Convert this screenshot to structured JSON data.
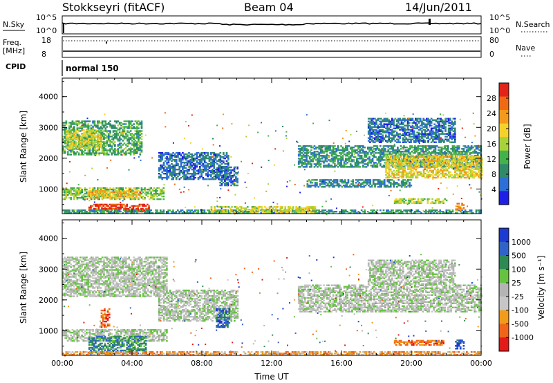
{
  "header": {
    "station": "Stokkseyri (fitACF)",
    "beam": "Beam 04",
    "date": "14/Jun/2011"
  },
  "summary_panels": {
    "nsky_label": "N.Sky",
    "nsky_ticks": [
      "10^5",
      "10^0"
    ],
    "nsearch_label": "N.Search",
    "nsearch_ticks": [
      "10^5",
      "10^0"
    ],
    "freq_label": "Freq.",
    "freq_unit": "[MHz]",
    "freq_ticks": [
      "18",
      "8"
    ],
    "nave_label": "Nave",
    "nave_ticks": [
      "80",
      "0"
    ],
    "cpid_label": "CPID",
    "cpid_value": "normal 150"
  },
  "colors": {
    "power_scale": [
      "#1f1fe6",
      "#2d6fd6",
      "#2f8a6a",
      "#44b24a",
      "#a8d23a",
      "#f4d22a",
      "#f39a1c",
      "#ef6a12",
      "#e2231a"
    ],
    "velocity_scale": [
      "#1d3bd0",
      "#2f63c8",
      "#2e8a55",
      "#66c340",
      "#b4b4b4",
      "#c6c6c6",
      "#f19b1b",
      "#f0651a",
      "#e21a1a"
    ]
  },
  "chart_data": [
    {
      "type": "heatmap",
      "name": "power",
      "ylabel": "Slant Range [km]",
      "yticks": [
        "4000",
        "3000",
        "2000",
        "1000"
      ],
      "ylim": [
        200,
        4600
      ],
      "xlim": [
        0,
        24
      ],
      "xticks": [
        "00:00",
        "04:00",
        "08:00",
        "12:00",
        "16:00",
        "20:00",
        "00:00"
      ],
      "colorbar_label": "Power [dB]",
      "colorbar_ticks": [
        "28",
        "24",
        "20",
        "16",
        "12",
        "8",
        "4"
      ],
      "colorbar_range": [
        0,
        32
      ],
      "regions": [
        {
          "t0": 0.0,
          "t1": 4.5,
          "r0": 2100,
          "r1": 3200,
          "level": 0.35
        },
        {
          "t0": 0.2,
          "t1": 2.2,
          "r0": 2300,
          "r1": 2900,
          "level": 0.55
        },
        {
          "t0": 0.0,
          "t1": 5.8,
          "r0": 650,
          "r1": 1050,
          "level": 0.45
        },
        {
          "t0": 1.5,
          "t1": 4.2,
          "r0": 700,
          "r1": 950,
          "level": 0.65
        },
        {
          "t0": 1.5,
          "t1": 5.0,
          "r0": 250,
          "r1": 500,
          "level": 0.92
        },
        {
          "t0": 0.0,
          "t1": 24.0,
          "r0": 200,
          "r1": 300,
          "level": 0.3
        },
        {
          "t0": 8.5,
          "t1": 14.5,
          "r0": 220,
          "r1": 420,
          "level": 0.55
        },
        {
          "t0": 5.5,
          "t1": 9.5,
          "r0": 1300,
          "r1": 2200,
          "level": 0.2
        },
        {
          "t0": 9.0,
          "t1": 10.0,
          "r0": 1100,
          "r1": 1700,
          "level": 0.2
        },
        {
          "t0": 13.5,
          "t1": 24.0,
          "r0": 1700,
          "r1": 2400,
          "level": 0.3
        },
        {
          "t0": 18.5,
          "t1": 24.0,
          "r0": 1350,
          "r1": 2100,
          "level": 0.6
        },
        {
          "t0": 14.0,
          "t1": 20.0,
          "r0": 1050,
          "r1": 1300,
          "level": 0.25
        },
        {
          "t0": 19.0,
          "t1": 22.0,
          "r0": 520,
          "r1": 680,
          "level": 0.5
        },
        {
          "t0": 17.5,
          "t1": 22.5,
          "r0": 2500,
          "r1": 3300,
          "level": 0.2
        },
        {
          "t0": 22.5,
          "t1": 23.0,
          "r0": 280,
          "r1": 520,
          "level": 0.75
        }
      ]
    },
    {
      "type": "heatmap",
      "name": "velocity",
      "ylabel": "Slant Range [km]",
      "yticks": [
        "4000",
        "3000",
        "2000",
        "1000"
      ],
      "ylim": [
        200,
        4600
      ],
      "xlim": [
        0,
        24
      ],
      "xticks": [
        "00:00",
        "04:00",
        "08:00",
        "12:00",
        "16:00",
        "20:00",
        "00:00"
      ],
      "xlabel": "Time UT",
      "colorbar_label": "Velocity [m s⁻¹]",
      "colorbar_ticks": [
        "1000",
        "500",
        "100",
        "25",
        "-25",
        "-100",
        "-500",
        "-1000"
      ],
      "regions": [
        {
          "t0": 0.0,
          "t1": 6.0,
          "r0": 2100,
          "r1": 3400,
          "level": 0.5
        },
        {
          "t0": 0.0,
          "t1": 6.0,
          "r0": 650,
          "r1": 1050,
          "level": 0.5
        },
        {
          "t0": 1.5,
          "t1": 4.8,
          "r0": 250,
          "r1": 800,
          "level": 0.28
        },
        {
          "t0": 0.0,
          "t1": 24.0,
          "r0": 200,
          "r1": 320,
          "level": 0.72
        },
        {
          "t0": 5.5,
          "t1": 10.0,
          "r0": 1300,
          "r1": 2300,
          "level": 0.5
        },
        {
          "t0": 13.5,
          "t1": 24.0,
          "r0": 1600,
          "r1": 2500,
          "level": 0.5
        },
        {
          "t0": 17.5,
          "t1": 22.5,
          "r0": 2500,
          "r1": 3300,
          "level": 0.5
        },
        {
          "t0": 19.0,
          "t1": 21.8,
          "r0": 520,
          "r1": 680,
          "level": 0.8
        },
        {
          "t0": 2.2,
          "t1": 2.7,
          "r0": 1100,
          "r1": 1700,
          "level": 0.85
        },
        {
          "t0": 8.8,
          "t1": 9.6,
          "r0": 1100,
          "r1": 1700,
          "level": 0.15
        },
        {
          "t0": 22.5,
          "t1": 23.0,
          "r0": 400,
          "r1": 700,
          "level": 0.1
        }
      ]
    }
  ]
}
